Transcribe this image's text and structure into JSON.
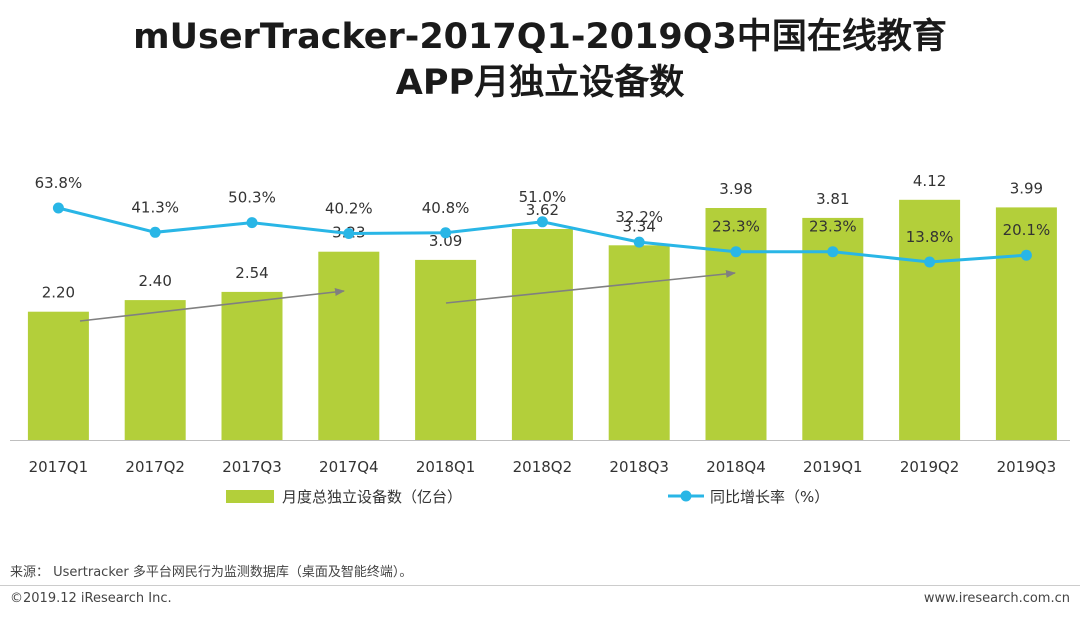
{
  "title_line1": "mUserTracker-2017Q1-2019Q3中国在线教育",
  "title_line2": "APP月独立设备数",
  "chart_data": {
    "type": "bar",
    "categories": [
      "2017Q1",
      "2017Q2",
      "2017Q3",
      "2017Q4",
      "2018Q1",
      "2018Q2",
      "2018Q3",
      "2018Q4",
      "2019Q1",
      "2019Q2",
      "2019Q3"
    ],
    "series": [
      {
        "name": "月度总独立设备数（亿台）",
        "type": "bar",
        "values": [
          2.2,
          2.4,
          2.54,
          3.23,
          3.09,
          3.62,
          3.34,
          3.98,
          3.81,
          4.12,
          3.99
        ],
        "labels": [
          "2.20",
          "2.40",
          "2.54",
          "3.23",
          "3.09",
          "3.62",
          "3.34",
          "3.98",
          "3.81",
          "4.12",
          "3.99"
        ],
        "color": "#b3cf3a"
      },
      {
        "name": "同比增长率（%）",
        "type": "line",
        "values": [
          63.8,
          41.3,
          50.3,
          40.2,
          40.8,
          51.0,
          32.2,
          23.3,
          23.3,
          13.8,
          20.1
        ],
        "labels": [
          "63.8%",
          "41.3%",
          "50.3%",
          "40.2%",
          "40.8%",
          "51.0%",
          "32.2%",
          "23.3%",
          "23.3%",
          "13.8%",
          "20.1%"
        ],
        "color": "#29b6e6"
      }
    ],
    "legend_placement": "bottom",
    "grid": false,
    "arrows_color": "#808080"
  },
  "source_text": "来源： Usertracker 多平台网民行为监测数据库（桌面及智能终端）。",
  "copyright_text": "©2019.12 iResearch Inc.",
  "website_text": "www.iresearch.com.cn"
}
